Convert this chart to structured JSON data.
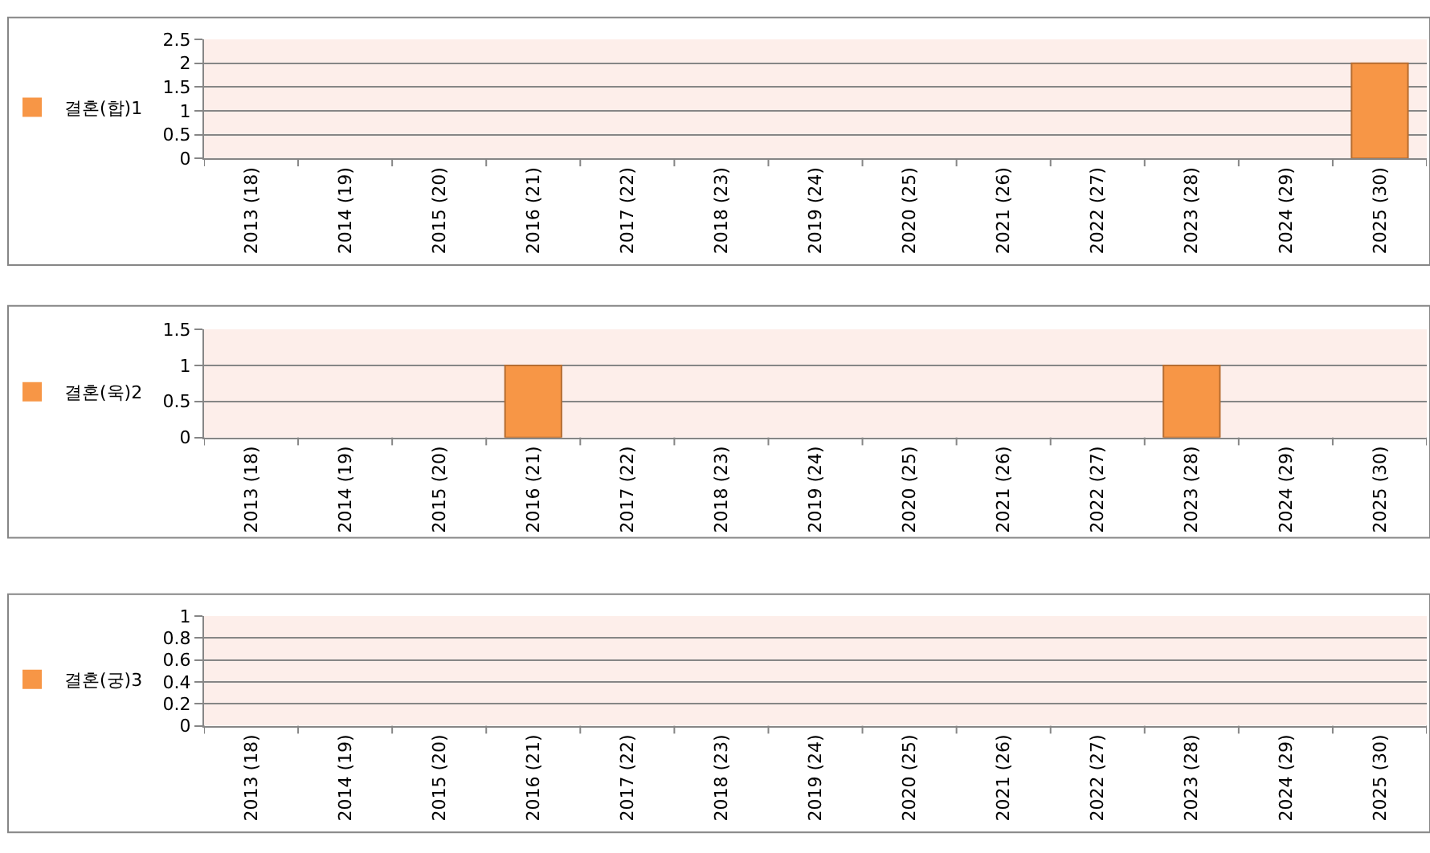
{
  "chart_data": [
    {
      "type": "bar",
      "categories": [
        "2013 (18)",
        "2014 (19)",
        "2015 (20)",
        "2016 (21)",
        "2017 (22)",
        "2018 (23)",
        "2019 (24)",
        "2020 (25)",
        "2021 (26)",
        "2022 (27)",
        "2023 (28)",
        "2024 (29)",
        "2025 (30)"
      ],
      "series": [
        {
          "name": "결혼(합)1",
          "color": "#f79646",
          "values": [
            0,
            0,
            0,
            0,
            0,
            0,
            0,
            0,
            0,
            0,
            0,
            0,
            2
          ]
        }
      ],
      "ylim": [
        0,
        2.5
      ],
      "yticks": [
        0,
        0.5,
        1,
        1.5,
        2,
        2.5
      ],
      "grid": "y",
      "legend": "left"
    },
    {
      "type": "bar",
      "categories": [
        "2013 (18)",
        "2014 (19)",
        "2015 (20)",
        "2016 (21)",
        "2017 (22)",
        "2018 (23)",
        "2019 (24)",
        "2020 (25)",
        "2021 (26)",
        "2022 (27)",
        "2023 (28)",
        "2024 (29)",
        "2025 (30)"
      ],
      "series": [
        {
          "name": "결혼(욱)2",
          "color": "#f79646",
          "values": [
            0,
            0,
            0,
            1,
            0,
            0,
            0,
            0,
            0,
            0,
            1,
            0,
            0
          ]
        }
      ],
      "ylim": [
        0,
        1.5
      ],
      "yticks": [
        0,
        0.5,
        1,
        1.5
      ],
      "grid": "y",
      "legend": "left"
    },
    {
      "type": "bar",
      "categories": [
        "2013 (18)",
        "2014 (19)",
        "2015 (20)",
        "2016 (21)",
        "2017 (22)",
        "2018 (23)",
        "2019 (24)",
        "2020 (25)",
        "2021 (26)",
        "2022 (27)",
        "2023 (28)",
        "2024 (29)",
        "2025 (30)"
      ],
      "series": [
        {
          "name": "결혼(궁)3",
          "color": "#f79646",
          "values": [
            0,
            0,
            0,
            0,
            0,
            0,
            0,
            0,
            0,
            0,
            0,
            0,
            0
          ]
        }
      ],
      "ylim": [
        0,
        1
      ],
      "yticks": [
        0,
        0.2,
        0.4,
        0.6,
        0.8,
        1
      ],
      "grid": "y",
      "legend": "left"
    }
  ]
}
